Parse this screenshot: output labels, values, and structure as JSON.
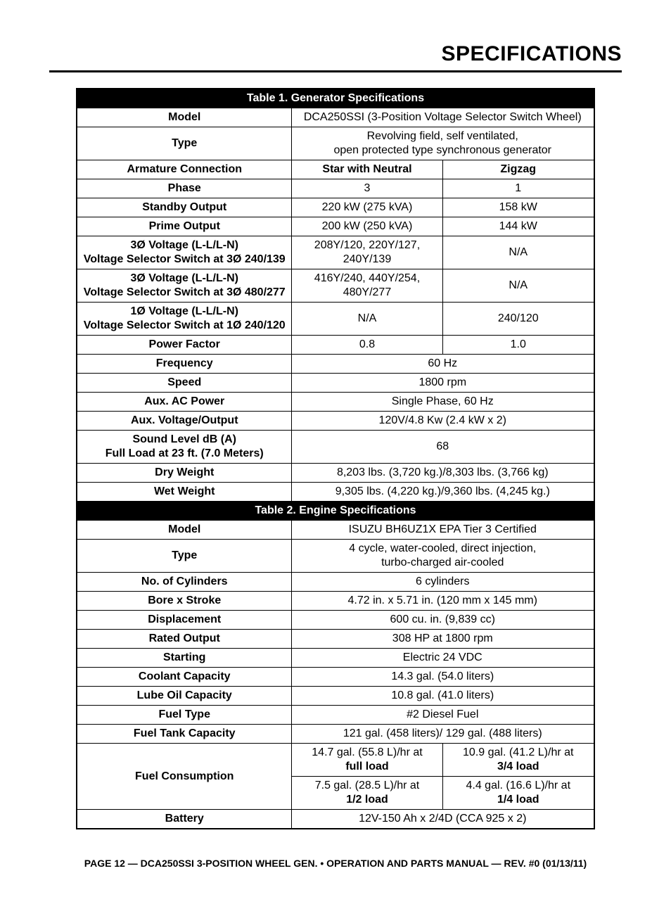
{
  "page": {
    "title": "SPECIFICATIONS",
    "footer": "PAGE 12 — DCA250SSI 3-POSITION WHEEL GEN. • OPERATION AND PARTS MANUAL — REV. #0 (01/13/11)"
  },
  "colors": {
    "header_bg": "#000000",
    "header_text": "#ffffff",
    "border": "#000000",
    "text": "#000000",
    "page_bg": "#ffffff"
  },
  "typography": {
    "title_font": "Arial Black",
    "title_size_pt": 22,
    "body_font": "Arial",
    "cell_size_pt": 12,
    "footer_size_pt": 10
  },
  "table1": {
    "title": "Table 1. Generator Specifications",
    "rows": {
      "model": {
        "label": "Model",
        "value": "DCA250SSI (3-Position Voltage Selector Switch Wheel)"
      },
      "type": {
        "label": "Type",
        "value_line1": "Revolving field, self ventilated,",
        "value_line2": "open protected type synchronous generator"
      },
      "armature": {
        "label": "Armature Connection",
        "col2": "Star with Neutral",
        "col3": "Zigzag"
      },
      "phase": {
        "label": "Phase",
        "col2": "3",
        "col3": "1"
      },
      "standby": {
        "label": "Standby Output",
        "col2": "220 kW (275 kVA)",
        "col3": "158 kW"
      },
      "prime": {
        "label": "Prime Output",
        "col2": "200 kW (250 kVA)",
        "col3": "144 kW"
      },
      "v3_240_139": {
        "label_l1": "3Ø Voltage (L-L/L-N)",
        "label_l2": "Voltage Selector Switch at 3Ø 240/139",
        "col2_l1": "208Y/120, 220Y/127,",
        "col2_l2": "240Y/139",
        "col3": "N/A"
      },
      "v3_480_277": {
        "label_l1": "3Ø Voltage (L-L/L-N)",
        "label_l2": "Voltage Selector Switch at 3Ø 480/277",
        "col2_l1": "416Y/240, 440Y/254,",
        "col2_l2": "480Y/277",
        "col3": "N/A"
      },
      "v1_240_120": {
        "label_l1": "1Ø Voltage (L-L/L-N)",
        "label_l2": "Voltage Selector Switch at 1Ø 240/120",
        "col2": "N/A",
        "col3": "240/120"
      },
      "pf": {
        "label": "Power Factor",
        "col2": "0.8",
        "col3": "1.0"
      },
      "freq": {
        "label": "Frequency",
        "value": "60 Hz"
      },
      "speed": {
        "label": "Speed",
        "value": "1800 rpm"
      },
      "auxac": {
        "label": "Aux. AC Power",
        "value": "Single Phase, 60 Hz"
      },
      "auxvo": {
        "label": "Aux. Voltage/Output",
        "value": "120V/4.8 Kw (2.4 kW x 2)"
      },
      "sound": {
        "label_l1": "Sound Level dB (A)",
        "label_l2": "Full Load at 23 ft. (7.0 Meters)",
        "value": "68"
      },
      "dry": {
        "label": "Dry Weight",
        "value": "8,203 lbs. (3,720 kg.)/8,303 lbs. (3,766 kg)"
      },
      "wet": {
        "label": "Wet Weight",
        "value": "9,305 lbs. (4,220 kg.)/9,360 lbs. (4,245 kg.)"
      }
    }
  },
  "table2": {
    "title": "Table 2. Engine Specifications",
    "rows": {
      "model": {
        "label": "Model",
        "value": "ISUZU BH6UZ1X EPA Tier 3 Certified"
      },
      "type": {
        "label": "Type",
        "value_l1": "4 cycle, water-cooled, direct injection,",
        "value_l2": "turbo-charged air-cooled"
      },
      "cyl": {
        "label": "No. of Cylinders",
        "value": "6 cylinders"
      },
      "bore": {
        "label": "Bore x Stroke",
        "value": "4.72 in. x 5.71 in. (120 mm x 145 mm)"
      },
      "disp": {
        "label": "Displacement",
        "value": "600 cu. in. (9,839 cc)"
      },
      "rated": {
        "label": "Rated Output",
        "value": "308 HP at 1800 rpm"
      },
      "start": {
        "label": "Starting",
        "value": "Electric 24 VDC"
      },
      "coolant": {
        "label": "Coolant Capacity",
        "value": "14.3 gal. (54.0 liters)"
      },
      "lube": {
        "label": "Lube Oil Capacity",
        "value": "10.8 gal. (41.0 liters)"
      },
      "fueltype": {
        "label": "Fuel Type",
        "value": "#2 Diesel Fuel"
      },
      "tank": {
        "label": "Fuel Tank Capacity",
        "value": "121 gal. (458 liters)/ 129 gal. (488 liters)"
      },
      "fuelcons": {
        "label": "Fuel Consumption",
        "r1c1_l1": "14.7 gal. (55.8 L)/hr at",
        "r1c1_l2": "full load",
        "r1c2_l1": "10.9 gal. (41.2 L)/hr at",
        "r1c2_l2": "3/4 load",
        "r2c1_l1": "7.5 gal. (28.5 L)/hr at",
        "r2c1_l2": "1/2 load",
        "r2c2_l1": "4.4 gal. (16.6 L)/hr at",
        "r2c2_l2": "1/4 load"
      },
      "battery": {
        "label": "Battery",
        "value": "12V-150 Ah x 2/4D (CCA 925 x 2)"
      }
    }
  }
}
